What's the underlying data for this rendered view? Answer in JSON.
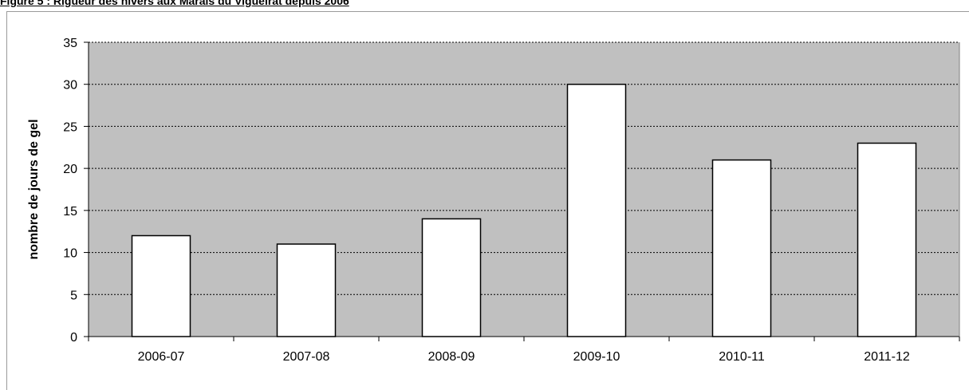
{
  "figure": {
    "title": "Figure 5 : Rigueur des hivers aux Marais du Vigueirat depuis 2006"
  },
  "colors": {
    "plot_background": "#c0c0c0",
    "bar_fill": "#ffffff",
    "bar_stroke": "#000000",
    "gridline": "#000000"
  },
  "chart_data": {
    "type": "bar",
    "title": "",
    "categories": [
      "2006-07",
      "2007-08",
      "2008-09",
      "2009-10",
      "2010-11",
      "2011-12"
    ],
    "values": [
      12,
      11,
      14,
      30,
      21,
      23
    ],
    "xlabel": "",
    "ylabel": "nombre de jours de gel",
    "ylim": [
      0,
      35
    ],
    "yticks": [
      0,
      5,
      10,
      15,
      20,
      25,
      30,
      35
    ],
    "grid": true,
    "legend": "none"
  }
}
